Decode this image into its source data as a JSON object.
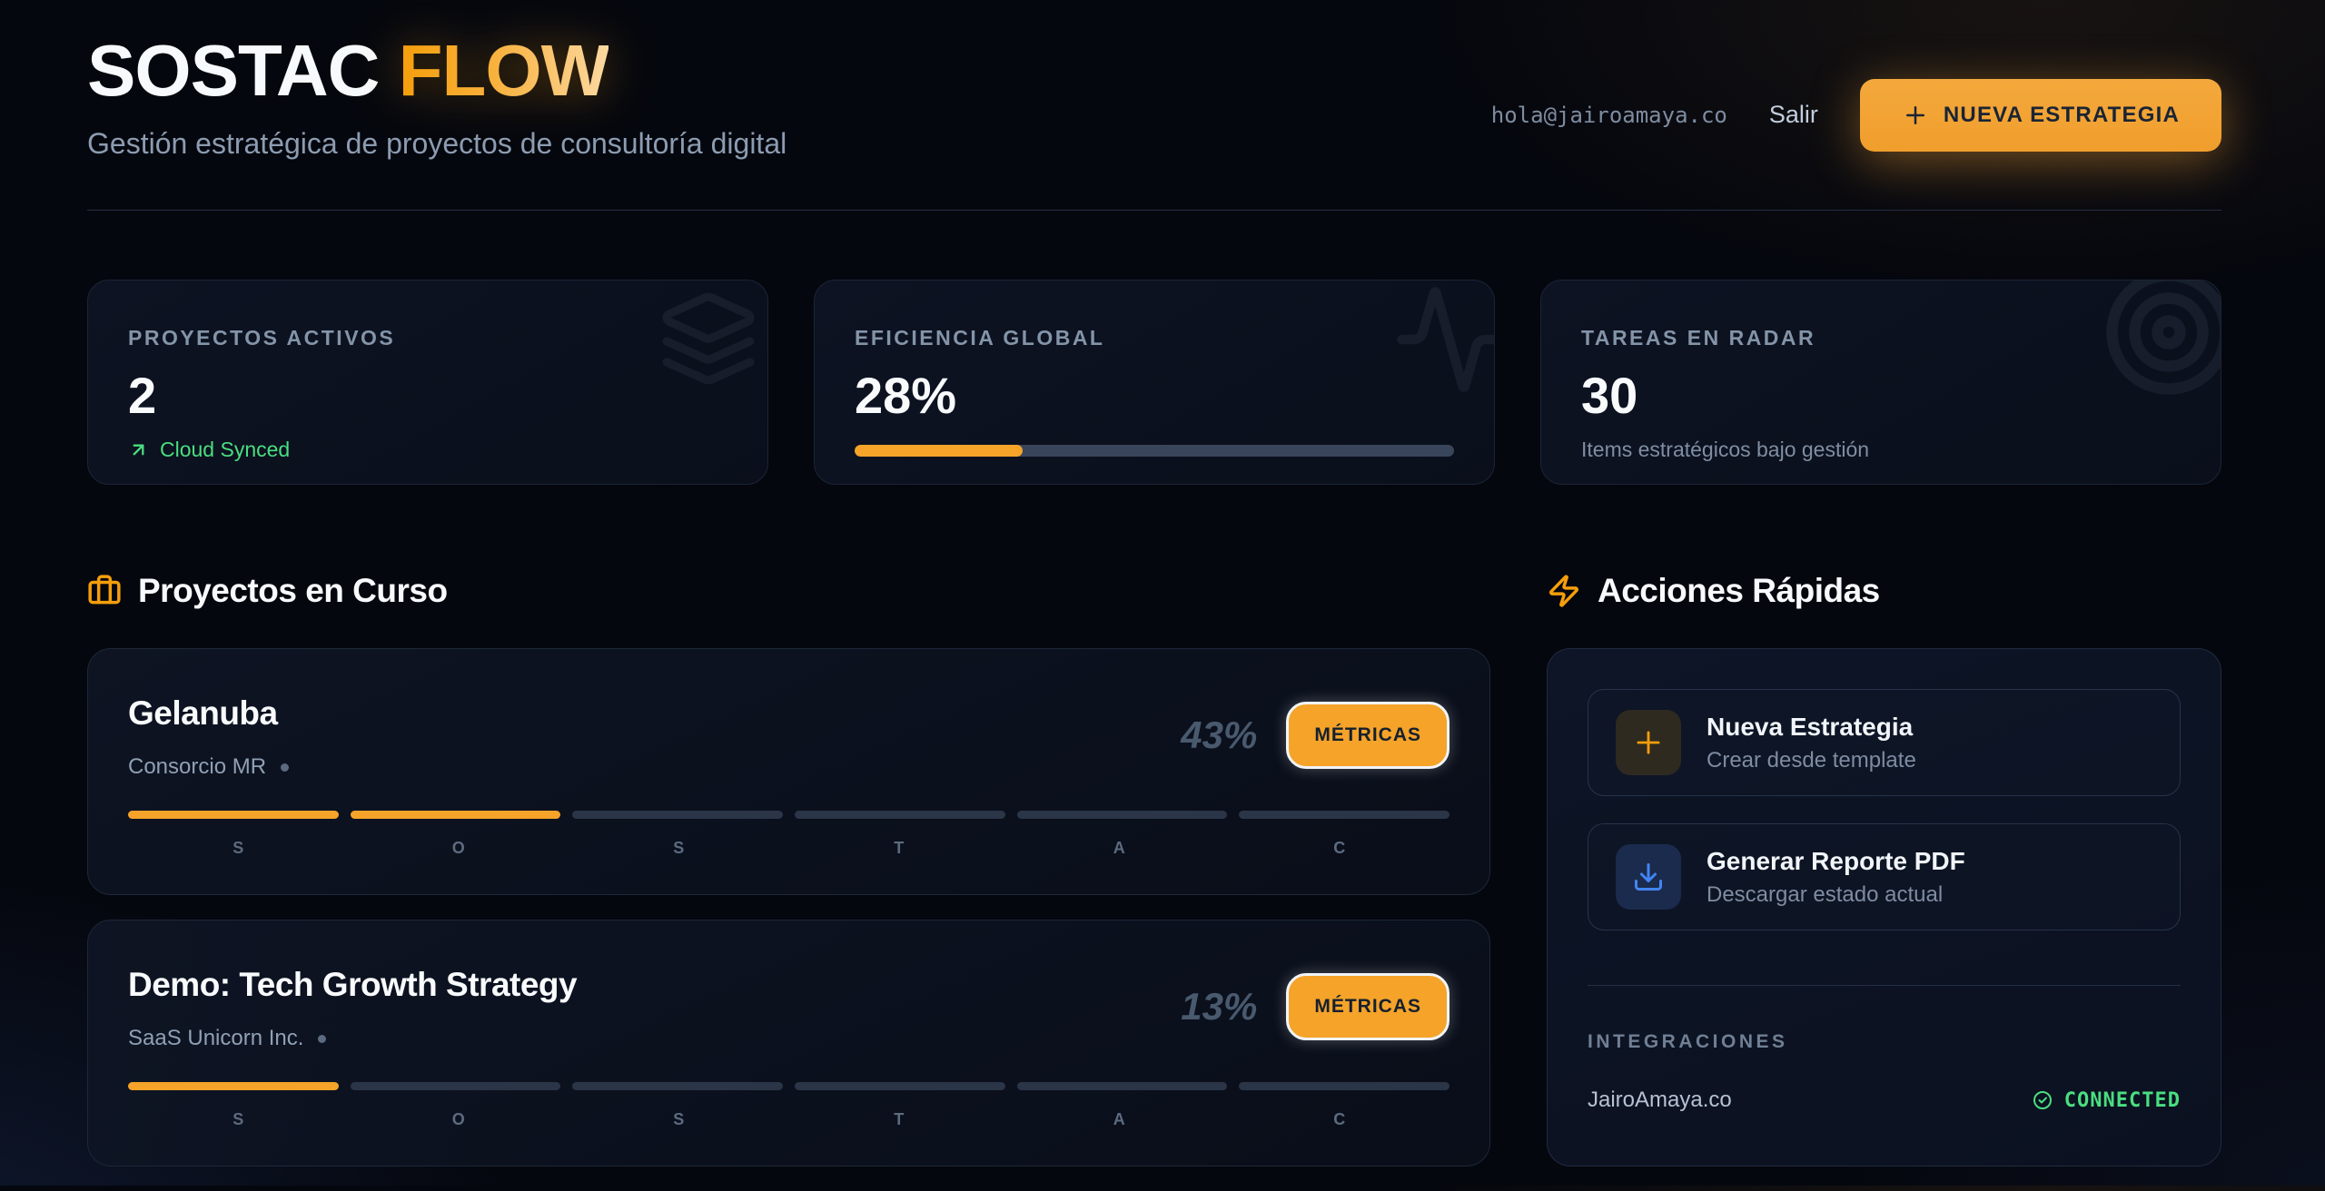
{
  "header": {
    "title_primary": "SOSTAC",
    "title_accent": "FLOW",
    "subtitle": "Gestión estratégica de proyectos de consultoría digital",
    "user_email": "hola@jairoamaya.co",
    "logout_label": "Salir",
    "cta_label": "NUEVA ESTRATEGIA",
    "cta_icon": "plus-icon"
  },
  "stats": [
    {
      "label": "PROYECTOS ACTIVOS",
      "value": "2",
      "note": "Cloud Synced",
      "note_icon": "arrow-up-right-icon",
      "bg_icon": "layers-icon"
    },
    {
      "label": "EFICIENCIA GLOBAL",
      "value": "28%",
      "progress_pct": 28,
      "bg_icon": "activity-icon"
    },
    {
      "label": "TAREAS EN RADAR",
      "value": "30",
      "note": "Items estratégicos bajo gestión",
      "bg_icon": "target-icon"
    }
  ],
  "sections": {
    "projects_title": "Proyectos en Curso",
    "projects_icon": "briefcase-icon",
    "actions_title": "Acciones Rápidas",
    "actions_icon": "zap-icon"
  },
  "projects": [
    {
      "name": "Gelanuba",
      "client": "Consorcio MR",
      "percent": "43%",
      "button_label": "MÉTRICAS",
      "stages": [
        "S",
        "O",
        "S",
        "T",
        "A",
        "C"
      ],
      "completed_stages": 2
    },
    {
      "name": "Demo: Tech Growth Strategy",
      "client": "SaaS Unicorn Inc.",
      "percent": "13%",
      "button_label": "MÉTRICAS",
      "stages": [
        "S",
        "O",
        "S",
        "T",
        "A",
        "C"
      ],
      "completed_stages": 1
    }
  ],
  "quick_actions": [
    {
      "title": "Nueva Estrategia",
      "subtitle": "Crear desde template",
      "icon": "plus-icon"
    },
    {
      "title": "Generar Reporte PDF",
      "subtitle": "Descargar estado actual",
      "icon": "download-icon"
    }
  ],
  "integrations": {
    "label": "INTEGRACIONES",
    "name": "JairoAmaya.co",
    "status": "CONNECTED",
    "status_icon": "check-circle-icon"
  },
  "colors": {
    "accent": "#f59e0b",
    "success": "#4ade80",
    "info": "#4285f4"
  }
}
